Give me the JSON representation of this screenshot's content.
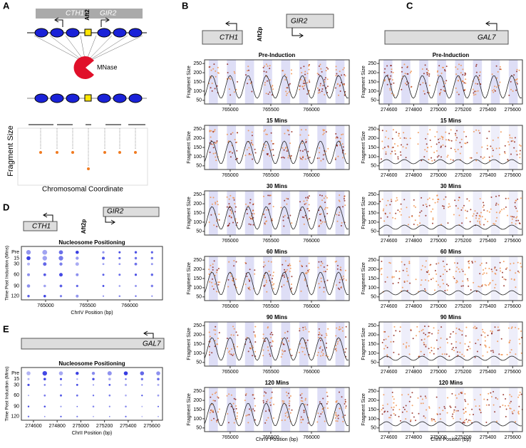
{
  "panels": {
    "A": {
      "label": "A",
      "genes": [
        "CTH1",
        "GIR2"
      ],
      "factor": "Aft2",
      "enzyme": "MNase",
      "y_label": "Fragment Size",
      "x_label": "Chromosomal Coordinate"
    },
    "B": {
      "label": "B",
      "genes": [
        "CTH1",
        "GIR2"
      ],
      "factor": "Aft2p",
      "plots": [
        "Pre-Induction",
        "15 Mins",
        "30 Mins",
        "60 Mins",
        "90 Mins",
        "120 Mins"
      ],
      "y_label": "Fragment Size",
      "x_label": "ChrIV Position (bp)",
      "xlim": [
        764685,
        766465
      ],
      "xticks": [
        765000,
        765500,
        766000
      ],
      "ylim": [
        30,
        270
      ],
      "yticks": [
        50,
        100,
        150,
        200,
        250
      ]
    },
    "C": {
      "label": "C",
      "genes": [
        "GAL7"
      ],
      "plots": [
        "Pre-Induction",
        "15 Mins",
        "30 Mins",
        "60 Mins",
        "90 Mins",
        "120 Mins"
      ],
      "y_label": "Fragment Size",
      "x_label": "ChrII Position (bp)",
      "xlim": [
        274521,
        275679
      ],
      "xticks": [
        274600,
        274800,
        275000,
        275200,
        275400,
        275600
      ],
      "ylim": [
        30,
        270
      ],
      "yticks": [
        50,
        100,
        150,
        200,
        250
      ]
    },
    "D": {
      "label": "D",
      "genes": [
        "CTH1",
        "GIR2"
      ],
      "factor": "Aft2p",
      "title": "Nucleosome Positioning",
      "y_label": "Time Post Induction (Mins)",
      "categories": [
        "Pre",
        15,
        30,
        60,
        90,
        120
      ],
      "x_label": "ChrIV Position (bp)",
      "xlim": [
        764712,
        766390
      ],
      "xticks": [
        765000,
        765500,
        766000
      ]
    },
    "E": {
      "label": "E",
      "genes": [
        "GAL7"
      ],
      "title": "Nucleosome Positioning",
      "y_label": "Time Post Induction (Mins)",
      "categories": [
        "Pre",
        15,
        30,
        60,
        90,
        120
      ],
      "x_label": "ChrII Position (bp)",
      "xlim": [
        274498,
        275690
      ],
      "xticks": [
        274600,
        274800,
        275000,
        275200,
        275400,
        275600
      ]
    }
  }
}
